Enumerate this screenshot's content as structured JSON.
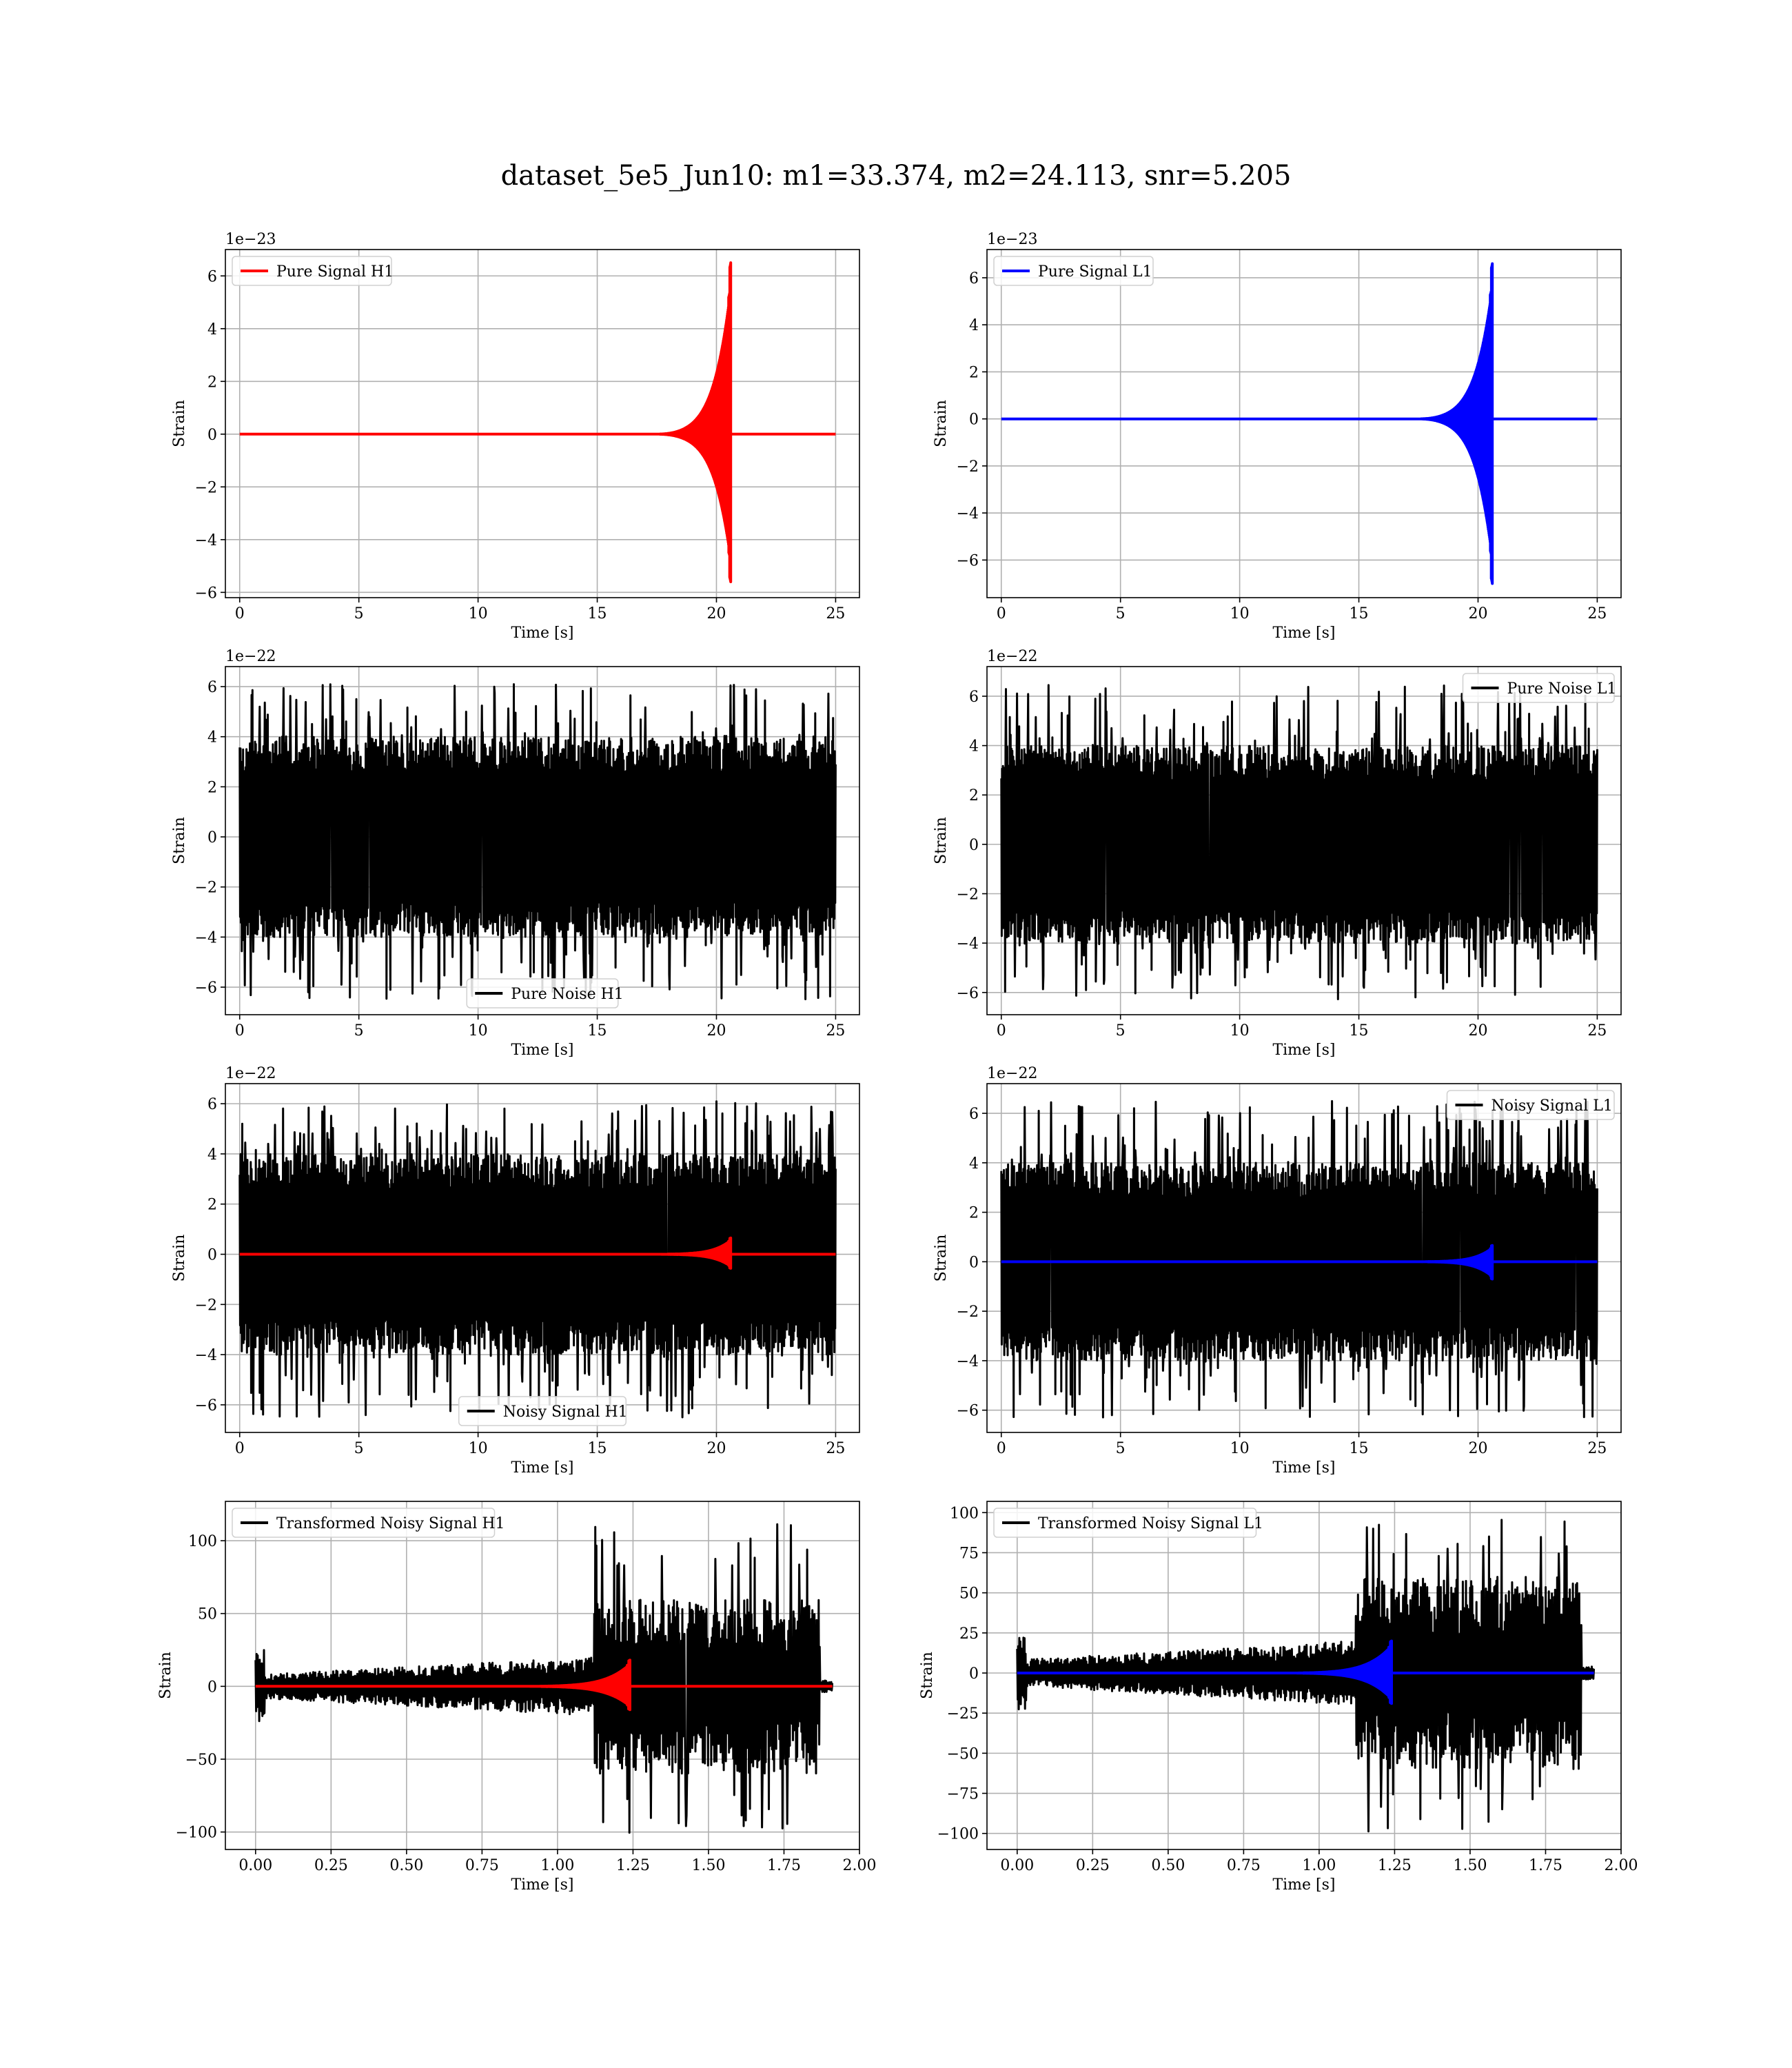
{
  "suptitle": "dataset_5e5_Jun10: m1=33.374, m2=24.113, snr=5.205",
  "colors": {
    "signal_h1": "#ff0000",
    "signal_l1": "#0000ff",
    "noise": "#000000",
    "grid": "#b0b0b0"
  },
  "chart_data": [
    {
      "id": "pure-signal-h1",
      "type": "line",
      "row": 0,
      "col": 0,
      "xlabel": "Time [s]",
      "ylabel": "Strain",
      "offset_text": "1e−23",
      "xlim": [
        -0.6,
        26.0
      ],
      "ylim": [
        -6.2,
        7.0
      ],
      "xticks": [
        0,
        5,
        10,
        15,
        20,
        25
      ],
      "xtick_labels": [
        "0",
        "5",
        "10",
        "15",
        "20",
        "25"
      ],
      "yticks": [
        -6,
        -4,
        -2,
        0,
        2,
        4,
        6
      ],
      "ytick_labels": [
        "−6",
        "−4",
        "−2",
        "0",
        "2",
        "4",
        "6"
      ],
      "grid": true,
      "legend_position": "upper left",
      "series": [
        {
          "name": "Pure Signal H1",
          "kind": "chirp",
          "color": "#ff0000",
          "x_start": 0,
          "x_end": 25,
          "merger_x": 20.6,
          "peak_max": 6.5,
          "peak_min": -5.6,
          "onset_x": 17.5
        }
      ]
    },
    {
      "id": "pure-signal-l1",
      "type": "line",
      "row": 0,
      "col": 1,
      "xlabel": "Time [s]",
      "ylabel": "Strain",
      "offset_text": "1e−23",
      "xlim": [
        -0.6,
        26.0
      ],
      "ylim": [
        -7.6,
        7.2
      ],
      "xticks": [
        0,
        5,
        10,
        15,
        20,
        25
      ],
      "xtick_labels": [
        "0",
        "5",
        "10",
        "15",
        "20",
        "25"
      ],
      "yticks": [
        -6,
        -4,
        -2,
        0,
        2,
        4,
        6
      ],
      "ytick_labels": [
        "−6",
        "−4",
        "−2",
        "0",
        "2",
        "4",
        "6"
      ],
      "grid": true,
      "legend_position": "upper left",
      "series": [
        {
          "name": "Pure Signal L1",
          "kind": "chirp",
          "color": "#0000ff",
          "x_start": 0,
          "x_end": 25,
          "merger_x": 20.6,
          "peak_max": 6.6,
          "peak_min": -7.0,
          "onset_x": 17.5
        }
      ]
    },
    {
      "id": "pure-noise-h1",
      "type": "line",
      "row": 1,
      "col": 0,
      "xlabel": "Time [s]",
      "ylabel": "Strain",
      "offset_text": "1e−22",
      "xlim": [
        -0.6,
        26.0
      ],
      "ylim": [
        -7.1,
        6.8
      ],
      "xticks": [
        0,
        5,
        10,
        15,
        20,
        25
      ],
      "xtick_labels": [
        "0",
        "5",
        "10",
        "15",
        "20",
        "25"
      ],
      "yticks": [
        -6,
        -4,
        -2,
        0,
        2,
        4,
        6
      ],
      "ytick_labels": [
        "−6",
        "−4",
        "−2",
        "0",
        "2",
        "4",
        "6"
      ],
      "grid": true,
      "legend_position": "lower center",
      "series": [
        {
          "name": "Pure Noise H1",
          "kind": "noise",
          "color": "#000000",
          "x_start": 0,
          "x_end": 25,
          "band": [
            -4.0,
            4.0
          ],
          "max": 6.1,
          "min": -6.5
        }
      ]
    },
    {
      "id": "pure-noise-l1",
      "type": "line",
      "row": 1,
      "col": 1,
      "xlabel": "Time [s]",
      "ylabel": "Strain",
      "offset_text": "1e−22",
      "xlim": [
        -0.6,
        26.0
      ],
      "ylim": [
        -6.9,
        7.2
      ],
      "xticks": [
        0,
        5,
        10,
        15,
        20,
        25
      ],
      "xtick_labels": [
        "0",
        "5",
        "10",
        "15",
        "20",
        "25"
      ],
      "yticks": [
        -6,
        -4,
        -2,
        0,
        2,
        4,
        6
      ],
      "ytick_labels": [
        "−6",
        "−4",
        "−2",
        "0",
        "2",
        "4",
        "6"
      ],
      "grid": true,
      "legend_position": "upper right",
      "series": [
        {
          "name": "Pure Noise L1",
          "kind": "noise",
          "color": "#000000",
          "x_start": 0,
          "x_end": 25,
          "band": [
            -4.0,
            4.0
          ],
          "max": 6.5,
          "min": -6.3
        }
      ]
    },
    {
      "id": "noisy-signal-h1",
      "type": "line",
      "row": 2,
      "col": 0,
      "xlabel": "Time [s]",
      "ylabel": "Strain",
      "offset_text": "1e−22",
      "xlim": [
        -0.6,
        26.0
      ],
      "ylim": [
        -7.1,
        6.8
      ],
      "xticks": [
        0,
        5,
        10,
        15,
        20,
        25
      ],
      "xtick_labels": [
        "0",
        "5",
        "10",
        "15",
        "20",
        "25"
      ],
      "yticks": [
        -6,
        -4,
        -2,
        0,
        2,
        4,
        6
      ],
      "ytick_labels": [
        "−6",
        "−4",
        "−2",
        "0",
        "2",
        "4",
        "6"
      ],
      "grid": true,
      "legend_position": "lower center",
      "series": [
        {
          "name": "Noisy Signal H1",
          "kind": "noise",
          "color": "#000000",
          "x_start": 0,
          "x_end": 25,
          "band": [
            -4.0,
            4.0
          ],
          "max": 6.1,
          "min": -6.5
        },
        {
          "name": "",
          "kind": "chirp",
          "color": "#ff0000",
          "x_start": 0,
          "x_end": 25,
          "merger_x": 20.6,
          "peak_max": 0.65,
          "peak_min": -0.56,
          "onset_x": 17.5
        }
      ]
    },
    {
      "id": "noisy-signal-l1",
      "type": "line",
      "row": 2,
      "col": 1,
      "xlabel": "Time [s]",
      "ylabel": "Strain",
      "offset_text": "1e−22",
      "xlim": [
        -0.6,
        26.0
      ],
      "ylim": [
        -6.9,
        7.2
      ],
      "xticks": [
        0,
        5,
        10,
        15,
        20,
        25
      ],
      "xtick_labels": [
        "0",
        "5",
        "10",
        "15",
        "20",
        "25"
      ],
      "yticks": [
        -6,
        -4,
        -2,
        0,
        2,
        4,
        6
      ],
      "ytick_labels": [
        "−6",
        "−4",
        "−2",
        "0",
        "2",
        "4",
        "6"
      ],
      "grid": true,
      "legend_position": "upper right",
      "series": [
        {
          "name": "Noisy Signal L1",
          "kind": "noise",
          "color": "#000000",
          "x_start": 0,
          "x_end": 25,
          "band": [
            -4.0,
            4.0
          ],
          "max": 6.5,
          "min": -6.3
        },
        {
          "name": "",
          "kind": "chirp",
          "color": "#0000ff",
          "x_start": 0,
          "x_end": 25,
          "merger_x": 20.6,
          "peak_max": 0.66,
          "peak_min": -0.7,
          "onset_x": 17.5
        }
      ]
    },
    {
      "id": "transformed-noisy-signal-h1",
      "type": "line",
      "row": 3,
      "col": 0,
      "xlabel": "Time [s]",
      "ylabel": "Strain",
      "offset_text": "",
      "xlim": [
        -0.1,
        2.0
      ],
      "ylim": [
        -112,
        127
      ],
      "xticks": [
        0,
        0.25,
        0.5,
        0.75,
        1.0,
        1.25,
        1.5,
        1.75,
        2.0
      ],
      "xtick_labels": [
        "0.00",
        "0.25",
        "0.50",
        "0.75",
        "1.00",
        "1.25",
        "1.50",
        "1.75",
        "2.00"
      ],
      "yticks": [
        -100,
        -50,
        0,
        50,
        100
      ],
      "ytick_labels": [
        "−100",
        "−50",
        "0",
        "50",
        "100"
      ],
      "grid": true,
      "legend_position": "upper left",
      "series": [
        {
          "name": "Transformed Noisy Signal H1",
          "kind": "transformed",
          "color": "#000000",
          "x_start": 0,
          "x_end": 1.91,
          "step_x": 1.12,
          "stop_x": 1.87,
          "max": 117,
          "min": -103
        },
        {
          "name": "",
          "kind": "chirp",
          "color": "#ff0000",
          "x_start": 0,
          "x_end": 1.91,
          "merger_x": 1.24,
          "peak_max": 18,
          "peak_min": -16,
          "onset_x": 0.9
        }
      ]
    },
    {
      "id": "transformed-noisy-signal-l1",
      "type": "line",
      "row": 3,
      "col": 1,
      "xlabel": "Time [s]",
      "ylabel": "Strain",
      "offset_text": "",
      "xlim": [
        -0.1,
        2.0
      ],
      "ylim": [
        -110,
        107
      ],
      "xticks": [
        0,
        0.25,
        0.5,
        0.75,
        1.0,
        1.25,
        1.5,
        1.75,
        2.0
      ],
      "xtick_labels": [
        "0.00",
        "0.25",
        "0.50",
        "0.75",
        "1.00",
        "1.25",
        "1.50",
        "1.75",
        "2.00"
      ],
      "yticks": [
        -100,
        -75,
        -50,
        -25,
        0,
        25,
        50,
        75,
        100
      ],
      "ytick_labels": [
        "−100",
        "−75",
        "−50",
        "−25",
        "0",
        "25",
        "50",
        "75",
        "100"
      ],
      "grid": true,
      "legend_position": "upper left",
      "series": [
        {
          "name": "Transformed Noisy Signal L1",
          "kind": "transformed",
          "color": "#000000",
          "x_start": 0,
          "x_end": 1.91,
          "step_x": 1.12,
          "stop_x": 1.87,
          "max": 100,
          "min": -100
        },
        {
          "name": "",
          "kind": "chirp",
          "color": "#0000ff",
          "x_start": 0,
          "x_end": 1.91,
          "merger_x": 1.24,
          "peak_max": 20,
          "peak_min": -19,
          "onset_x": 0.9
        }
      ]
    }
  ]
}
